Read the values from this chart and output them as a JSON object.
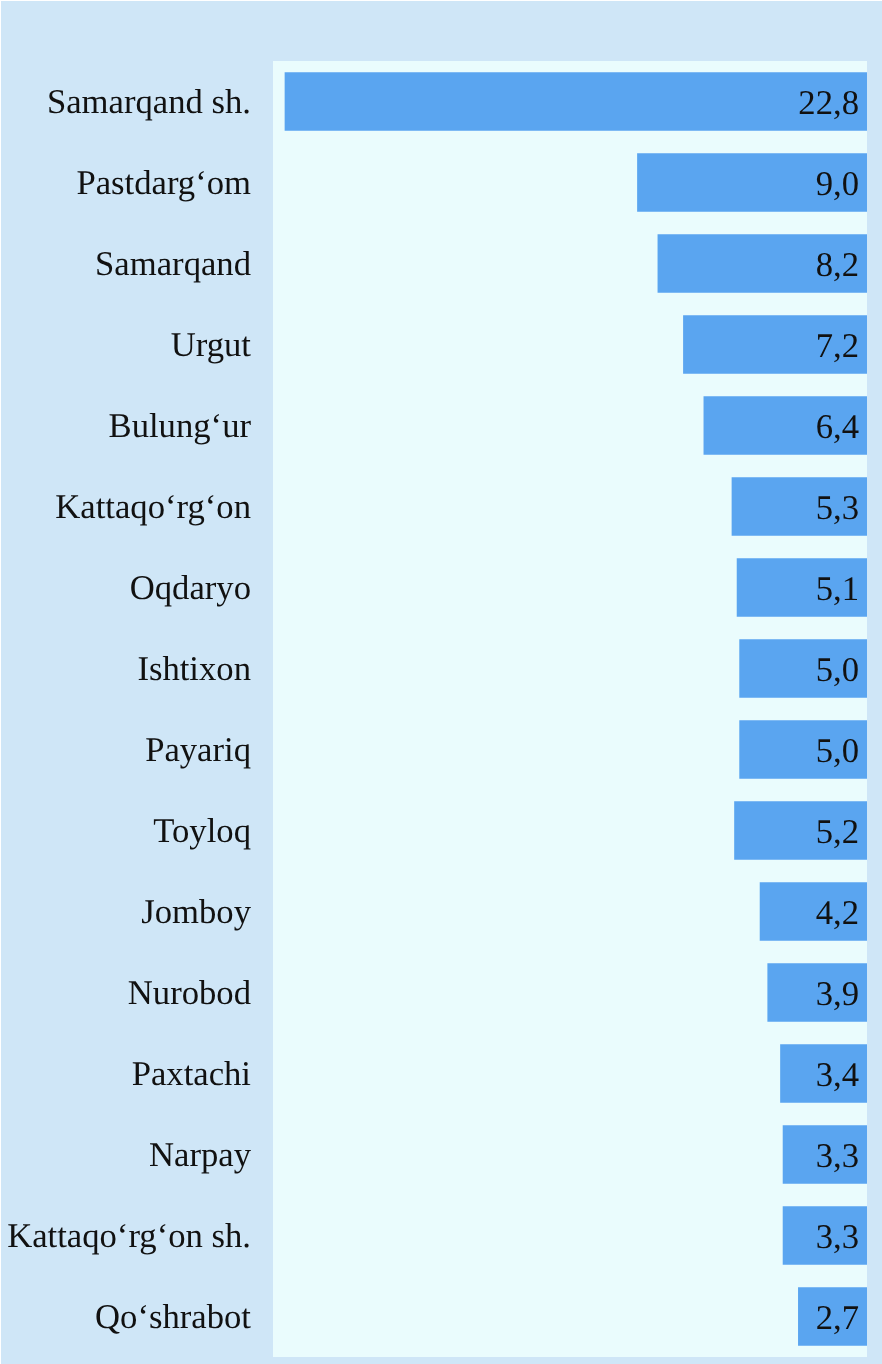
{
  "chart_data": {
    "type": "bar",
    "orientation": "horizontal",
    "categories": [
      "Samarqand sh.",
      "Pastdarg‘om",
      "Samarqand",
      "Urgut",
      "Bulung‘ur",
      "Kattaqo‘rg‘on",
      "Oqdaryo",
      "Ishtixon",
      "Payariq",
      "Toyloq",
      "Jomboy",
      "Nurobod",
      "Paxtachi",
      "Narpay",
      "Kattaqo‘rg‘on sh.",
      "Qo‘shrabot"
    ],
    "values": [
      22.8,
      9.0,
      8.2,
      7.2,
      6.4,
      5.3,
      5.1,
      5.0,
      5.0,
      5.2,
      4.2,
      3.9,
      3.4,
      3.3,
      3.3,
      2.7
    ],
    "value_labels": [
      "22,8",
      "9,0",
      "8,2",
      "7,2",
      "6,4",
      "5,3",
      "5,1",
      "5,0",
      "5,0",
      "5,2",
      "4,2",
      "3,9",
      "3,4",
      "3,3",
      "3,3",
      "2,7"
    ],
    "color": "#5aa5f0",
    "data_labels": true,
    "grid": false
  }
}
